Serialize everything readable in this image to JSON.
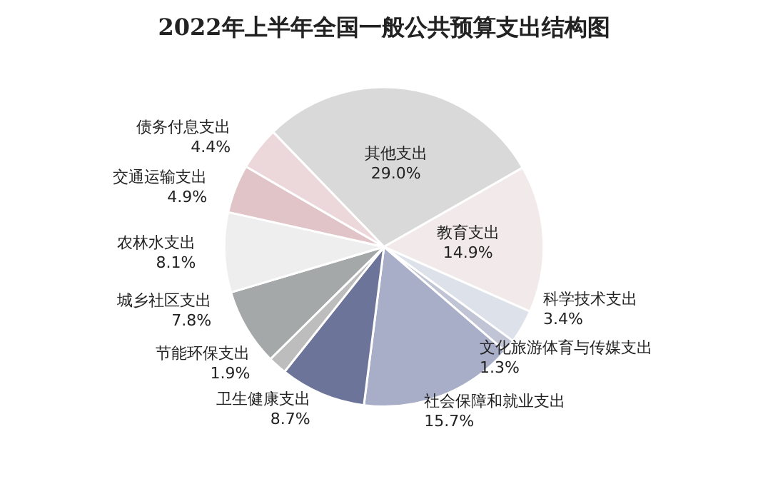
{
  "chart_data": {
    "type": "pie",
    "title": "2022年上半年全国一般公共预算支出结构图",
    "categories": [
      "其他支出",
      "教育支出",
      "科学技术支出",
      "文化旅游体育与传媒支出",
      "社会保障和就业支出",
      "卫生健康支出",
      "节能环保支出",
      "城乡社区支出",
      "农林水支出",
      "交通运输支出",
      "债务付息支出"
    ],
    "values": [
      29.0,
      14.9,
      3.4,
      1.3,
      15.7,
      8.7,
      1.9,
      7.8,
      8.1,
      4.9,
      4.4
    ],
    "value_labels": [
      "29.0%",
      "14.9%",
      "3.4%",
      "1.3%",
      "15.7%",
      "8.7%",
      "1.9%",
      "7.8%",
      "8.1%",
      "4.9%",
      "4.4%"
    ],
    "colors": [
      "#d9d9d9",
      "#f2eaea",
      "#dde1ea",
      "#c0c4d4",
      "#a9aec8",
      "#6c7499",
      "#bdbdbd",
      "#a4a8a8",
      "#eeeeee",
      "#e0c4c8",
      "#ecd8da"
    ],
    "legend": false
  }
}
